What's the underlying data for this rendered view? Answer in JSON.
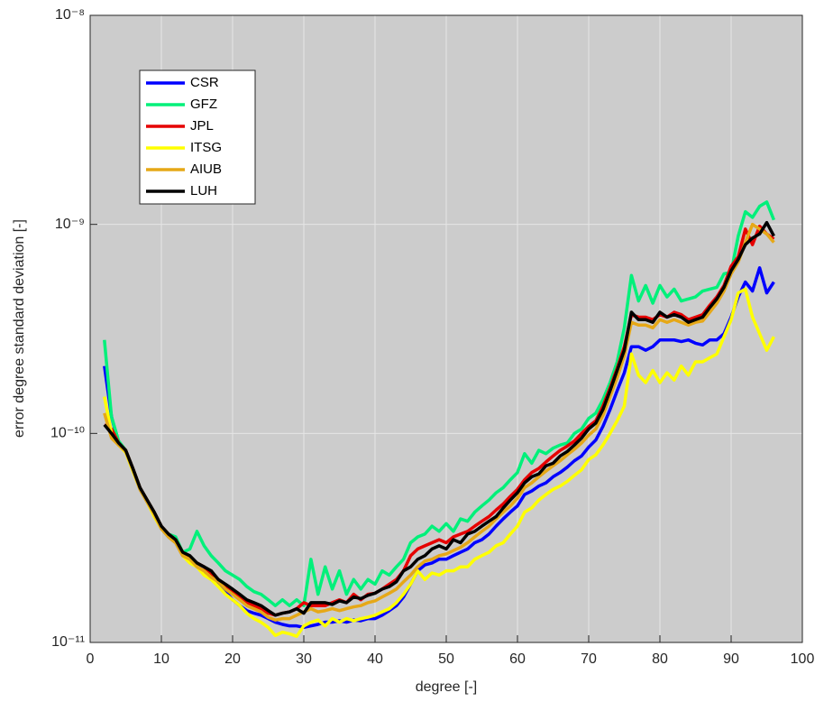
{
  "chart_data": {
    "type": "line",
    "xlabel": "degree [-]",
    "ylabel": "error degree standard deviation [-]",
    "log_y": true,
    "grid": true,
    "legend": "upper left",
    "xlim": [
      0,
      100
    ],
    "xticks": [
      0,
      10,
      20,
      30,
      40,
      50,
      60,
      70,
      80,
      90,
      100
    ],
    "ylim": [
      1e-11,
      1e-08
    ],
    "yticks": [
      {
        "value": 1e-11,
        "label": "10⁻¹¹"
      },
      {
        "value": 1e-10,
        "label": "10⁻¹⁰"
      },
      {
        "value": 1e-09,
        "label": "10⁻⁹"
      },
      {
        "value": 1e-08,
        "label": "10⁻⁸"
      }
    ],
    "x": [
      2,
      3,
      4,
      5,
      6,
      7,
      8,
      9,
      10,
      11,
      12,
      13,
      14,
      15,
      16,
      17,
      18,
      19,
      20,
      21,
      22,
      23,
      24,
      25,
      26,
      27,
      28,
      29,
      30,
      31,
      32,
      33,
      34,
      35,
      36,
      37,
      38,
      39,
      40,
      41,
      42,
      43,
      44,
      45,
      46,
      47,
      48,
      49,
      50,
      51,
      52,
      53,
      54,
      55,
      56,
      57,
      58,
      59,
      60,
      61,
      62,
      63,
      64,
      65,
      66,
      67,
      68,
      69,
      70,
      71,
      72,
      73,
      74,
      75,
      76,
      77,
      78,
      79,
      80,
      81,
      82,
      83,
      84,
      85,
      86,
      87,
      88,
      89,
      90,
      91,
      92,
      93,
      94,
      95,
      96
    ],
    "series": [
      {
        "name": "CSR",
        "color": "#0000ff",
        "values": [
          2.1e-10,
          1.2e-10,
          9e-11,
          8.2e-11,
          6.7e-11,
          5.4e-11,
          4.7e-11,
          4.1e-11,
          3.5e-11,
          3.2e-11,
          3e-11,
          2.6e-11,
          2.5e-11,
          2.3e-11,
          2.2e-11,
          2e-11,
          1.9e-11,
          1.75e-11,
          1.6e-11,
          1.5e-11,
          1.42e-11,
          1.38e-11,
          1.35e-11,
          1.3e-11,
          1.25e-11,
          1.22e-11,
          1.2e-11,
          1.2e-11,
          1.18e-11,
          1.2e-11,
          1.22e-11,
          1.25e-11,
          1.25e-11,
          1.27e-11,
          1.25e-11,
          1.28e-11,
          1.27e-11,
          1.3e-11,
          1.3e-11,
          1.35e-11,
          1.42e-11,
          1.5e-11,
          1.65e-11,
          1.9e-11,
          2.2e-11,
          2.35e-11,
          2.4e-11,
          2.5e-11,
          2.5e-11,
          2.6e-11,
          2.7e-11,
          2.8e-11,
          3e-11,
          3.1e-11,
          3.3e-11,
          3.6e-11,
          3.9e-11,
          4.2e-11,
          4.5e-11,
          5.1e-11,
          5.3e-11,
          5.6e-11,
          5.8e-11,
          6.2e-11,
          6.5e-11,
          6.9e-11,
          7.4e-11,
          7.8e-11,
          8.6e-11,
          9.3e-11,
          1.08e-10,
          1.3e-10,
          1.6e-10,
          1.95e-10,
          2.6e-10,
          2.6e-10,
          2.5e-10,
          2.6e-10,
          2.8e-10,
          2.8e-10,
          2.8e-10,
          2.75e-10,
          2.8e-10,
          2.7e-10,
          2.65e-10,
          2.8e-10,
          2.8e-10,
          3e-10,
          3.6e-10,
          4.5e-10,
          5.3e-10,
          4.8e-10,
          6.2e-10,
          4.7e-10,
          5.3e-10
        ]
      },
      {
        "name": "GFZ",
        "color": "#00f07a",
        "values": [
          2.8e-10,
          1.2e-10,
          9.2e-11,
          8.3e-11,
          6.8e-11,
          5.5e-11,
          4.8e-11,
          4.2e-11,
          3.6e-11,
          3.3e-11,
          3.2e-11,
          2.7e-11,
          2.8e-11,
          3.4e-11,
          2.9e-11,
          2.6e-11,
          2.4e-11,
          2.2e-11,
          2.1e-11,
          2e-11,
          1.85e-11,
          1.75e-11,
          1.7e-11,
          1.6e-11,
          1.5e-11,
          1.6e-11,
          1.5e-11,
          1.6e-11,
          1.5e-11,
          2.5e-11,
          1.7e-11,
          2.3e-11,
          1.8e-11,
          2.2e-11,
          1.7e-11,
          2e-11,
          1.8e-11,
          2e-11,
          1.9e-11,
          2.2e-11,
          2.1e-11,
          2.3e-11,
          2.5e-11,
          3e-11,
          3.2e-11,
          3.3e-11,
          3.6e-11,
          3.4e-11,
          3.7e-11,
          3.4e-11,
          3.9e-11,
          3.8e-11,
          4.2e-11,
          4.5e-11,
          4.8e-11,
          5.2e-11,
          5.5e-11,
          6e-11,
          6.5e-11,
          8e-11,
          7.2e-11,
          8.3e-11,
          8e-11,
          8.5e-11,
          8.8e-11,
          9e-11,
          1e-10,
          1.05e-10,
          1.18e-10,
          1.25e-10,
          1.45e-10,
          1.75e-10,
          2.2e-10,
          3.2e-10,
          5.7e-10,
          4.3e-10,
          5.1e-10,
          4.2e-10,
          5.1e-10,
          4.5e-10,
          4.9e-10,
          4.3e-10,
          4.4e-10,
          4.5e-10,
          4.8e-10,
          4.9e-10,
          5e-10,
          5.8e-10,
          5.9e-10,
          8.8e-10,
          1.15e-09,
          1.08e-09,
          1.22e-09,
          1.28e-09,
          1.05e-09
        ]
      },
      {
        "name": "JPL",
        "color": "#e60000",
        "values": [
          1.1e-10,
          1.05e-10,
          9e-11,
          8.3e-11,
          6.8e-11,
          5.5e-11,
          4.8e-11,
          4.2e-11,
          3.6e-11,
          3.3e-11,
          3.1e-11,
          2.7e-11,
          2.5e-11,
          2.4e-11,
          2.3e-11,
          2.1e-11,
          2e-11,
          1.85e-11,
          1.75e-11,
          1.65e-11,
          1.55e-11,
          1.5e-11,
          1.45e-11,
          1.38e-11,
          1.35e-11,
          1.38e-11,
          1.4e-11,
          1.45e-11,
          1.55e-11,
          1.5e-11,
          1.5e-11,
          1.5e-11,
          1.55e-11,
          1.6e-11,
          1.55e-11,
          1.7e-11,
          1.6e-11,
          1.7e-11,
          1.72e-11,
          1.8e-11,
          1.9e-11,
          2e-11,
          2.2e-11,
          2.6e-11,
          2.8e-11,
          2.9e-11,
          3e-11,
          3.1e-11,
          3e-11,
          3.2e-11,
          3.3e-11,
          3.4e-11,
          3.6e-11,
          3.8e-11,
          4e-11,
          4.3e-11,
          4.6e-11,
          5e-11,
          5.4e-11,
          6e-11,
          6.5e-11,
          6.8e-11,
          7.3e-11,
          7.8e-11,
          8.3e-11,
          8.7e-11,
          9.2e-11,
          1e-10,
          1.08e-10,
          1.15e-10,
          1.35e-10,
          1.65e-10,
          2.05e-10,
          2.6e-10,
          3.7e-10,
          3.6e-10,
          3.6e-10,
          3.5e-10,
          3.7e-10,
          3.6e-10,
          3.8e-10,
          3.7e-10,
          3.5e-10,
          3.6e-10,
          3.7e-10,
          4.1e-10,
          4.5e-10,
          5.1e-10,
          6.3e-10,
          7e-10,
          9.5e-10,
          8e-10,
          9.8e-10,
          9e-10,
          8.5e-10
        ]
      },
      {
        "name": "ITSG",
        "color": "#ffff00",
        "values": [
          1.5e-10,
          1e-10,
          8.8e-11,
          8.1e-11,
          6.6e-11,
          5.4e-11,
          4.7e-11,
          4e-11,
          3.5e-11,
          3.2e-11,
          3e-11,
          2.6e-11,
          2.4e-11,
          2.3e-11,
          2.1e-11,
          2e-11,
          1.85e-11,
          1.7e-11,
          1.6e-11,
          1.5e-11,
          1.38e-11,
          1.3e-11,
          1.25e-11,
          1.18e-11,
          1.08e-11,
          1.12e-11,
          1.1e-11,
          1.07e-11,
          1.2e-11,
          1.25e-11,
          1.28e-11,
          1.2e-11,
          1.3e-11,
          1.25e-11,
          1.3e-11,
          1.27e-11,
          1.3e-11,
          1.32e-11,
          1.35e-11,
          1.4e-11,
          1.45e-11,
          1.55e-11,
          1.7e-11,
          1.9e-11,
          2.2e-11,
          2e-11,
          2.15e-11,
          2.1e-11,
          2.2e-11,
          2.2e-11,
          2.3e-11,
          2.3e-11,
          2.5e-11,
          2.6e-11,
          2.7e-11,
          2.9e-11,
          3e-11,
          3.3e-11,
          3.6e-11,
          4.2e-11,
          4.4e-11,
          4.8e-11,
          5.1e-11,
          5.4e-11,
          5.6e-11,
          5.9e-11,
          6.3e-11,
          6.7e-11,
          7.5e-11,
          7.9e-11,
          8.8e-11,
          1e-10,
          1.15e-10,
          1.35e-10,
          2.4e-10,
          1.9e-10,
          1.75e-10,
          2e-10,
          1.75e-10,
          1.95e-10,
          1.8e-10,
          2.1e-10,
          1.9e-10,
          2.2e-10,
          2.2e-10,
          2.3e-10,
          2.4e-10,
          2.9e-10,
          3.5e-10,
          4.7e-10,
          4.9e-10,
          3.6e-10,
          3e-10,
          2.5e-10,
          2.9e-10
        ]
      },
      {
        "name": "AIUB",
        "color": "#e6a817",
        "values": [
          1.25e-10,
          9.5e-11,
          8.8e-11,
          8.2e-11,
          6.7e-11,
          5.4e-11,
          4.7e-11,
          4.1e-11,
          3.5e-11,
          3.2e-11,
          3e-11,
          2.6e-11,
          2.5e-11,
          2.3e-11,
          2.2e-11,
          2.05e-11,
          1.95e-11,
          1.8e-11,
          1.7e-11,
          1.6e-11,
          1.5e-11,
          1.45e-11,
          1.4e-11,
          1.32e-11,
          1.28e-11,
          1.3e-11,
          1.3e-11,
          1.35e-11,
          1.4e-11,
          1.45e-11,
          1.4e-11,
          1.42e-11,
          1.45e-11,
          1.42e-11,
          1.45e-11,
          1.48e-11,
          1.5e-11,
          1.55e-11,
          1.58e-11,
          1.65e-11,
          1.72e-11,
          1.8e-11,
          1.95e-11,
          2.1e-11,
          2.3e-11,
          2.45e-11,
          2.5e-11,
          2.6e-11,
          2.65e-11,
          2.75e-11,
          2.85e-11,
          3e-11,
          3.2e-11,
          3.4e-11,
          3.6e-11,
          3.9e-11,
          4.2e-11,
          4.5e-11,
          4.9e-11,
          5.5e-11,
          5.8e-11,
          6.2e-11,
          6.6e-11,
          7e-11,
          7.4e-11,
          7.9e-11,
          8.4e-11,
          9e-11,
          9.8e-11,
          1.05e-10,
          1.22e-10,
          1.5e-10,
          1.85e-10,
          2.35e-10,
          3.4e-10,
          3.3e-10,
          3.3e-10,
          3.2e-10,
          3.5e-10,
          3.4e-10,
          3.5e-10,
          3.4e-10,
          3.3e-10,
          3.4e-10,
          3.45e-10,
          3.8e-10,
          4.2e-10,
          4.8e-10,
          5.8e-10,
          6.6e-10,
          8.2e-10,
          1e-09,
          9.5e-10,
          9e-10,
          8.2e-10
        ]
      },
      {
        "name": "LUH",
        "color": "#000000",
        "values": [
          1.1e-10,
          1e-10,
          9e-11,
          8.3e-11,
          6.8e-11,
          5.5e-11,
          4.8e-11,
          4.2e-11,
          3.6e-11,
          3.3e-11,
          3.1e-11,
          2.7e-11,
          2.6e-11,
          2.4e-11,
          2.3e-11,
          2.2e-11,
          2e-11,
          1.9e-11,
          1.8e-11,
          1.7e-11,
          1.6e-11,
          1.55e-11,
          1.5e-11,
          1.42e-11,
          1.35e-11,
          1.38e-11,
          1.4e-11,
          1.45e-11,
          1.38e-11,
          1.55e-11,
          1.55e-11,
          1.55e-11,
          1.52e-11,
          1.58e-11,
          1.55e-11,
          1.65e-11,
          1.62e-11,
          1.68e-11,
          1.72e-11,
          1.8e-11,
          1.85e-11,
          1.95e-11,
          2.2e-11,
          2.3e-11,
          2.5e-11,
          2.6e-11,
          2.8e-11,
          2.9e-11,
          2.8e-11,
          3.1e-11,
          3e-11,
          3.3e-11,
          3.4e-11,
          3.6e-11,
          3.8e-11,
          4e-11,
          4.4e-11,
          4.8e-11,
          5.2e-11,
          5.8e-11,
          6.2e-11,
          6.4e-11,
          7e-11,
          7.2e-11,
          7.8e-11,
          8.2e-11,
          8.8e-11,
          9.5e-11,
          1.05e-10,
          1.12e-10,
          1.3e-10,
          1.6e-10,
          2e-10,
          2.5e-10,
          3.8e-10,
          3.5e-10,
          3.5e-10,
          3.4e-10,
          3.8e-10,
          3.6e-10,
          3.7e-10,
          3.6e-10,
          3.4e-10,
          3.5e-10,
          3.6e-10,
          4e-10,
          4.4e-10,
          5e-10,
          6e-10,
          6.8e-10,
          8e-10,
          8.6e-10,
          9e-10,
          1.02e-09,
          8.8e-10
        ]
      }
    ]
  }
}
